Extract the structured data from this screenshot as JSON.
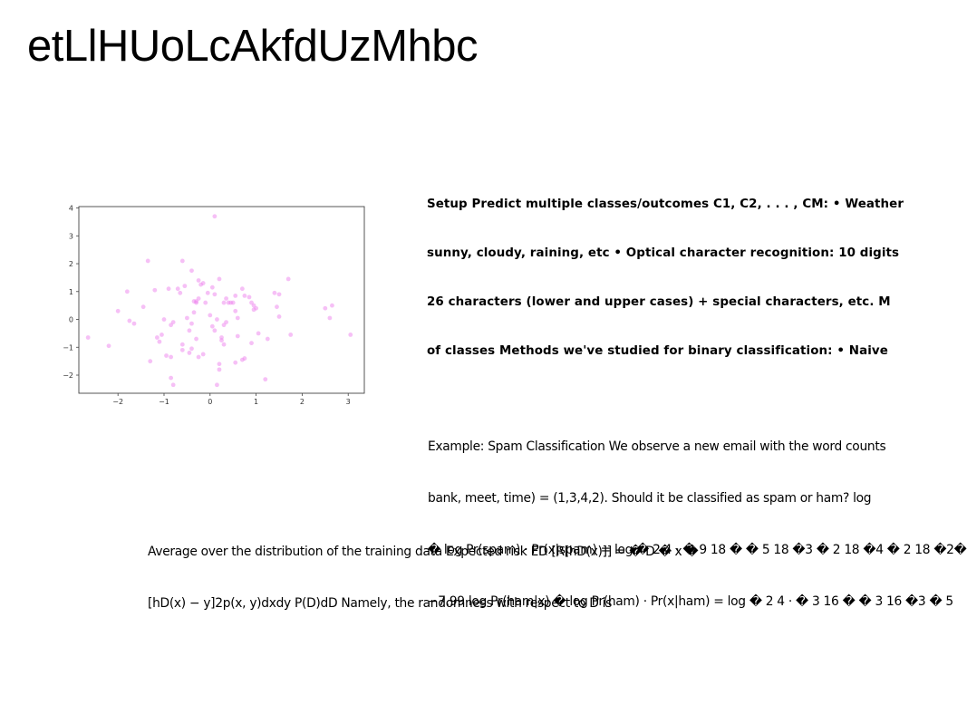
{
  "title": "etLlHUoLcAkfdUzMhbc",
  "setup_text": {
    "lines": [
      "Setup Predict multiple classes/outcomes C1, C2, . . . , CM: • Weather",
      "sunny, cloudy, raining, etc • Optical character recognition: 10 digits",
      "26 characters (lower and upper cases) + special characters, etc. M",
      "of classes Methods we've studied for binary classification: • Naive"
    ]
  },
  "example_text": {
    "lines": [
      "Example: Spam Classification We observe a new email with the word counts",
      "bank, meet, time) = (1,3,4,2). Should it be classified as spam or ham? log",
      "� log Pr(spam) · Pr(x|spam) = log � 2 4 · � 9 18 � � 5 18 �3 � 2 18 �4 � 2 18 �2�",
      "−7.99 log Pr(ham|x) � log Pr(ham) · Pr(x|ham) = log � 2 4 · � 3 16 � � 3 16 �3 � 5"
    ]
  },
  "risk_text": {
    "lines": [
      "Average over the distribution of the training data Expected risk ED [R[hD(x)]] = � D � x �",
      "[hD(x) − y]2p(x, y)dxdy P(D)dD Namely, the randomness with respect to D is"
    ]
  },
  "chart_data": {
    "type": "scatter",
    "title": "",
    "xlabel": "",
    "ylabel": "",
    "xlim": [
      -2.85,
      3.35
    ],
    "ylim": [
      -2.65,
      4.05
    ],
    "xticks": [
      -2,
      -1,
      0,
      1,
      2,
      3
    ],
    "yticks": [
      -2,
      -1,
      0,
      1,
      2,
      3,
      4
    ],
    "xtick_labels": [
      "−2",
      "−1",
      "0",
      "1",
      "2",
      "3"
    ],
    "ytick_labels": [
      "−2",
      "−1",
      "0",
      "1",
      "2",
      "3",
      "4"
    ],
    "grid": false,
    "marker_color": "#ee82ee",
    "marker_opacity": 0.5,
    "series": [
      {
        "x": [
          0.1,
          -1.35,
          -0.6,
          -0.4,
          1.7,
          -1.8,
          -0.55,
          -0.7,
          -0.9,
          -1.2,
          -0.25,
          -0.2,
          -0.15,
          0.05,
          0.2,
          0.7,
          0.75,
          0.4,
          1.4,
          2.65,
          2.5,
          -2.0,
          -1.75,
          -1.65,
          -1.0,
          -0.85,
          -0.8,
          -0.5,
          -0.35,
          -0.3,
          -0.1,
          0.0,
          0.15,
          0.3,
          0.35,
          0.45,
          0.55,
          0.6,
          0.9,
          0.95,
          1.0,
          1.45,
          1.5,
          2.6,
          -1.15,
          -1.05,
          -0.6,
          -0.45,
          -0.3,
          0.05,
          0.25,
          0.6,
          0.9,
          1.25,
          3.05,
          -2.65,
          -2.2,
          -1.3,
          -0.95,
          -0.6,
          -0.45,
          -0.4,
          -0.25,
          -0.15,
          0.2,
          0.3,
          0.75,
          1.05,
          -1.1,
          -0.85,
          -0.4,
          0.55,
          0.7,
          1.2,
          0.15,
          0.2,
          -0.85,
          -0.8,
          0.25,
          1.75,
          -0.25,
          -0.05,
          0.1,
          0.3,
          0.35,
          0.5,
          0.55,
          0.85,
          0.95,
          1.5,
          -1.45,
          -0.65,
          -0.35,
          -0.3,
          0.1
        ],
        "y": [
          3.7,
          2.1,
          2.1,
          1.75,
          1.45,
          1.0,
          1.2,
          1.1,
          1.1,
          1.05,
          1.4,
          1.25,
          1.3,
          1.15,
          1.45,
          1.1,
          0.85,
          0.6,
          0.95,
          0.5,
          0.4,
          0.3,
          -0.05,
          -0.15,
          0.0,
          -0.2,
          -0.1,
          0.05,
          0.25,
          0.6,
          0.6,
          0.15,
          0.0,
          -0.2,
          -0.1,
          0.6,
          0.3,
          0.05,
          0.6,
          0.35,
          0.4,
          0.45,
          0.1,
          0.05,
          -0.65,
          -0.55,
          -0.9,
          -0.4,
          -0.7,
          -0.25,
          -0.65,
          -0.6,
          -0.85,
          -0.7,
          -0.55,
          -0.65,
          -0.95,
          -1.5,
          -1.3,
          -1.1,
          -1.2,
          -1.05,
          -1.35,
          -1.25,
          -1.6,
          -0.9,
          -1.4,
          -0.5,
          -0.8,
          -1.35,
          -0.15,
          -1.55,
          -1.45,
          -2.15,
          -2.35,
          -1.8,
          -2.1,
          -2.35,
          -0.75,
          -0.55,
          0.75,
          0.95,
          0.9,
          0.6,
          0.75,
          0.6,
          0.85,
          0.8,
          0.5,
          0.9,
          0.45,
          0.95,
          0.65,
          0.65,
          -0.4
        ]
      }
    ]
  }
}
